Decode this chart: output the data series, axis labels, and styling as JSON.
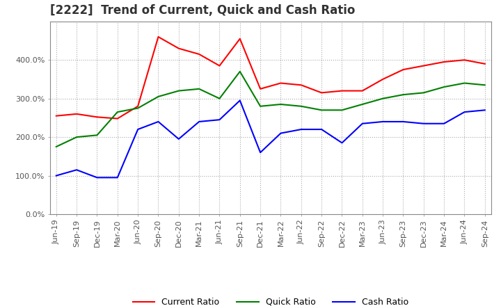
{
  "title": "[2222]  Trend of Current, Quick and Cash Ratio",
  "x_labels": [
    "Jun-19",
    "Sep-19",
    "Dec-19",
    "Mar-20",
    "Jun-20",
    "Sep-20",
    "Dec-20",
    "Mar-21",
    "Jun-21",
    "Sep-21",
    "Dec-21",
    "Mar-22",
    "Jun-22",
    "Sep-22",
    "Dec-22",
    "Mar-23",
    "Jun-23",
    "Sep-23",
    "Dec-23",
    "Mar-24",
    "Jun-24",
    "Sep-24"
  ],
  "current_ratio": [
    255,
    260,
    252,
    248,
    280,
    460,
    430,
    415,
    385,
    455,
    325,
    340,
    335,
    315,
    320,
    320,
    350,
    375,
    385,
    395,
    400,
    390
  ],
  "quick_ratio": [
    175,
    200,
    205,
    265,
    275,
    305,
    320,
    325,
    300,
    370,
    280,
    285,
    280,
    270,
    270,
    285,
    300,
    310,
    315,
    330,
    340,
    335
  ],
  "cash_ratio": [
    100,
    115,
    95,
    95,
    220,
    240,
    195,
    240,
    245,
    295,
    160,
    210,
    220,
    220,
    185,
    235,
    240,
    240,
    235,
    235,
    265,
    270
  ],
  "current_color": "#ff0000",
  "quick_color": "#008000",
  "cash_color": "#0000ff",
  "ylim": [
    0,
    500
  ],
  "yticks": [
    0,
    100,
    200,
    300,
    400
  ],
  "background_color": "#ffffff",
  "grid_color": "#aaaaaa",
  "title_fontsize": 12,
  "tick_fontsize": 8,
  "legend_fontsize": 9
}
